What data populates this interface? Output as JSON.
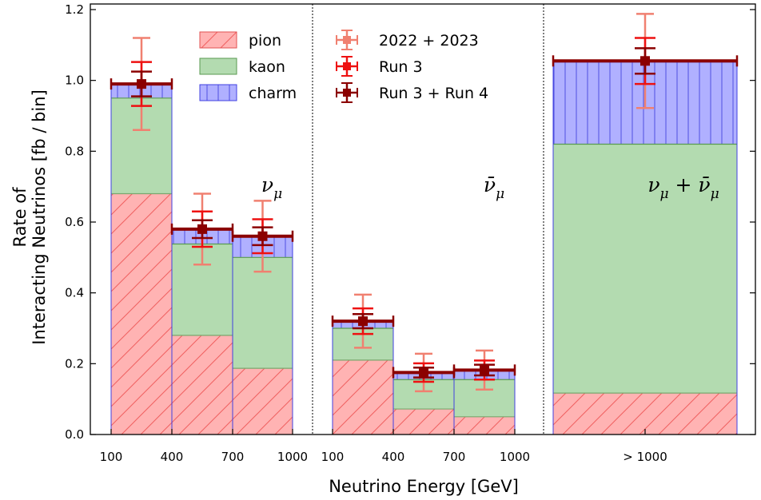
{
  "chart_data": {
    "type": "bar",
    "xlabel": "Neutrino Energy [GeV]",
    "ylabel_lines": [
      "Rate of",
      "Interacting Neutrinos [fb / bin]"
    ],
    "ylim": [
      0,
      1.2
    ],
    "yticks": [
      "0.0",
      "0.2",
      "0.4",
      "0.6",
      "0.8",
      "1.0",
      "1.2"
    ],
    "stack_order": [
      "pion",
      "kaon",
      "charm"
    ],
    "legend": {
      "placement": "top",
      "components": [
        {
          "name": "pion",
          "color": "#ffb3b3",
          "hatch": "diagonal",
          "edge": "#e05050"
        },
        {
          "name": "kaon",
          "color": "#b3dbb0",
          "edge": "#5a9a50"
        },
        {
          "name": "charm",
          "color": "#b0b0ff",
          "hatch": "vertical",
          "edge": "#4040e0"
        }
      ],
      "datasets": [
        {
          "name": "2022 + 2023",
          "color": "#f08070"
        },
        {
          "name": "Run 3",
          "color": "#ee1111"
        },
        {
          "name": "Run 3 + Run 4",
          "color": "#8b0000"
        }
      ]
    },
    "panels": [
      {
        "label": "ν_μ",
        "label_main": "ν",
        "label_sub": "μ",
        "x_ticks": [
          "100",
          "400",
          "700",
          "1000"
        ],
        "bins": [
          {
            "range": "100-400",
            "pion": 0.68,
            "kaon": 0.27,
            "charm": 0.04,
            "total": 0.99,
            "center": 0.99,
            "err_2022_2023": 0.13,
            "err_run3": 0.062,
            "err_run3_run4": 0.035
          },
          {
            "range": "400-700",
            "pion": 0.28,
            "kaon": 0.258,
            "charm": 0.042,
            "total": 0.58,
            "center": 0.58,
            "err_2022_2023": 0.1,
            "err_run3": 0.05,
            "err_run3_run4": 0.025
          },
          {
            "range": "700-1000",
            "pion": 0.187,
            "kaon": 0.313,
            "charm": 0.06,
            "total": 0.56,
            "center": 0.56,
            "err_2022_2023": 0.1,
            "err_run3": 0.048,
            "err_run3_run4": 0.025
          }
        ]
      },
      {
        "label": "ν̄_μ",
        "label_main": "ν̄",
        "label_sub": "μ",
        "x_ticks": [
          "100",
          "400",
          "700",
          "1000"
        ],
        "bins": [
          {
            "range": "100-400",
            "pion": 0.21,
            "kaon": 0.09,
            "charm": 0.02,
            "total": 0.32,
            "center": 0.32,
            "err_2022_2023": 0.075,
            "err_run3": 0.036,
            "err_run3_run4": 0.02
          },
          {
            "range": "400-700",
            "pion": 0.072,
            "kaon": 0.083,
            "charm": 0.02,
            "total": 0.175,
            "center": 0.175,
            "err_2022_2023": 0.053,
            "err_run3": 0.026,
            "err_run3_run4": 0.014
          },
          {
            "range": "700-1000",
            "pion": 0.05,
            "kaon": 0.105,
            "charm": 0.027,
            "total": 0.182,
            "center": 0.182,
            "err_2022_2023": 0.055,
            "err_run3": 0.027,
            "err_run3_run4": 0.015
          }
        ]
      },
      {
        "label": "ν_μ + ν̄_μ",
        "label_main": "ν",
        "label_sub": "μ",
        "label_join": " + ",
        "label_main2": "ν̄",
        "label_sub2": "μ",
        "x_ticks": [
          "> 1000"
        ],
        "bins": [
          {
            "range": "> 1000",
            "pion": 0.117,
            "kaon": 0.703,
            "charm": 0.232,
            "total": 1.052,
            "center": 1.055,
            "err_2022_2023": 0.133,
            "err_run3": 0.065,
            "err_run3_run4": 0.036
          }
        ]
      }
    ]
  }
}
